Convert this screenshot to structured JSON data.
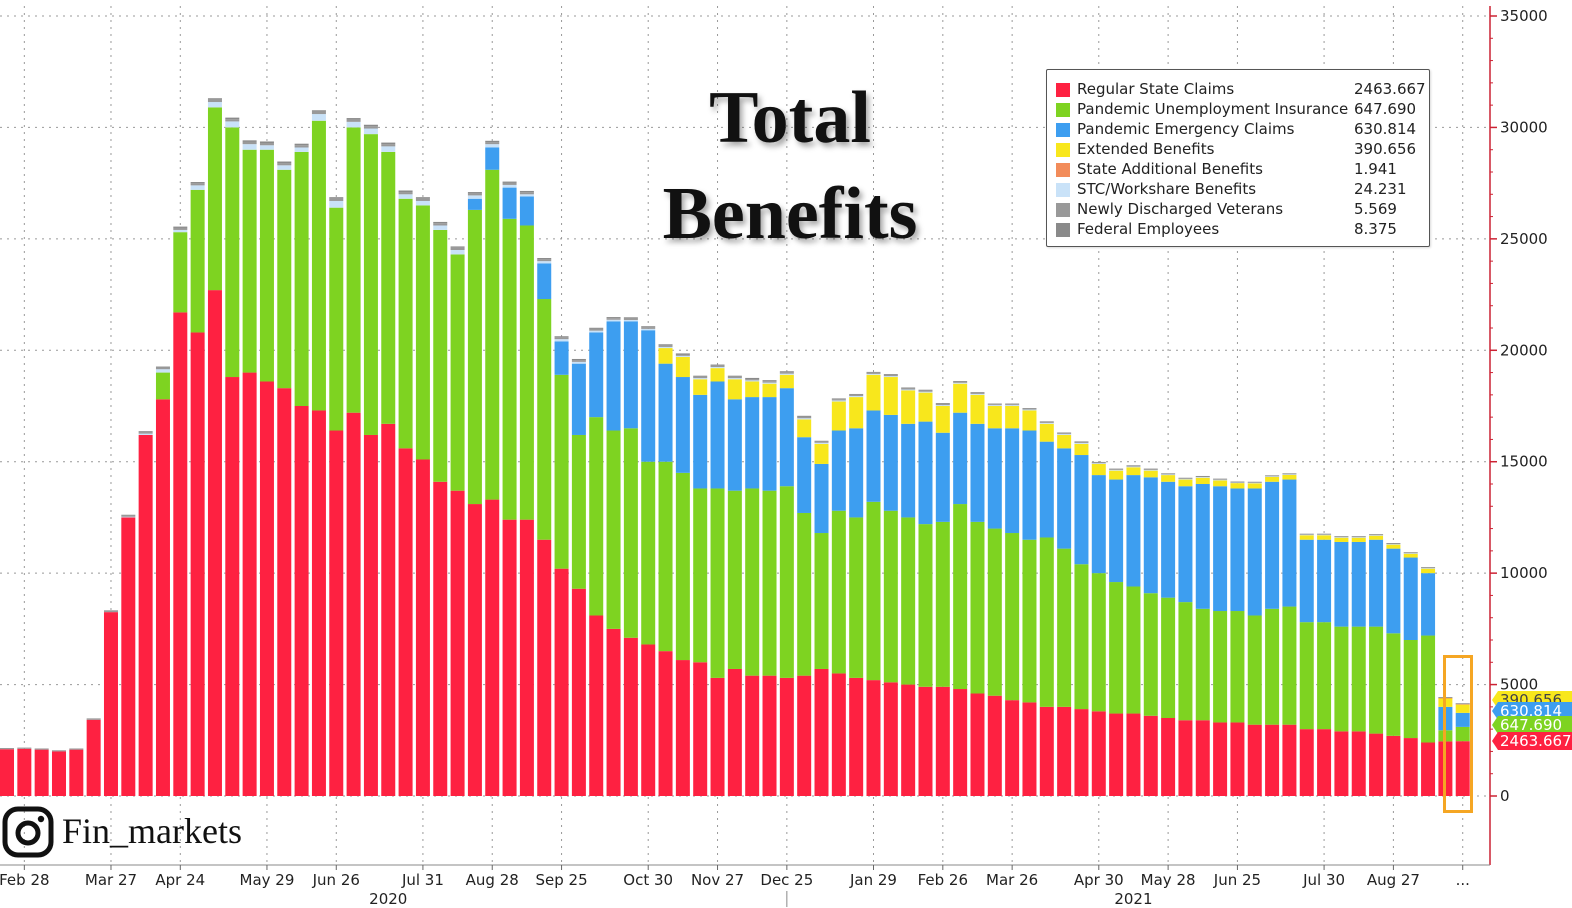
{
  "title": {
    "line1": "Total",
    "line2": "Benefits"
  },
  "watermark": {
    "handle": "Fin_markets",
    "icon": "instagram-icon"
  },
  "chart_data": {
    "type": "bar",
    "stacked": true,
    "ylim": [
      0,
      35000
    ],
    "y_ticks": [
      0,
      5000,
      10000,
      15000,
      20000,
      25000,
      30000,
      35000
    ],
    "x_tick_labels": [
      "Feb 28",
      "Mar 27",
      "Apr 24",
      "May 29",
      "Jun 26",
      "Jul 31",
      "Aug 28",
      "Sep 25",
      "Oct 30",
      "Nov 27",
      "Dec 25",
      "Jan 29",
      "Feb 26",
      "Mar 26",
      "Apr 30",
      "May 28",
      "Jun 25",
      "Jul 30",
      "Aug 27",
      "..."
    ],
    "x_tick_index": [
      1,
      6,
      10,
      15,
      19,
      24,
      28,
      32,
      37,
      41,
      45,
      50,
      54,
      58,
      63,
      67,
      71,
      76,
      80,
      84
    ],
    "year_labels": [
      "2020",
      "2021"
    ],
    "year_label_index": [
      22,
      65
    ],
    "year_divider_index": 45,
    "grid": true,
    "legend_position": "top-right",
    "series": [
      {
        "name": "Regular State Claims",
        "latest": "2463.667",
        "color": "#fe2141",
        "values": [
          2100,
          2120,
          2080,
          2000,
          2080,
          3420,
          8250,
          12500,
          16200,
          17800,
          21700,
          20800,
          22700,
          18800,
          19000,
          18600,
          18300,
          17500,
          17300,
          16400,
          17200,
          16200,
          16700,
          15600,
          15100,
          14100,
          13700,
          13100,
          13300,
          12400,
          12400,
          11500,
          10200,
          9300,
          8100,
          7500,
          7100,
          6800,
          6500,
          6100,
          6000,
          5300,
          5700,
          5400,
          5400,
          5300,
          5400,
          5700,
          5500,
          5300,
          5200,
          5100,
          5000,
          4900,
          4900,
          4800,
          4600,
          4500,
          4300,
          4200,
          4000,
          4000,
          3900,
          3800,
          3700,
          3700,
          3600,
          3500,
          3400,
          3400,
          3300,
          3300,
          3200,
          3200,
          3200,
          3000,
          3000,
          2900,
          2900,
          2800,
          2700,
          2600,
          2400,
          2450,
          2460
        ]
      },
      {
        "name": "Pandemic Unemployment Insurance",
        "latest": "647.690",
        "color": "#7ed321",
        "values": [
          0,
          0,
          0,
          0,
          0,
          0,
          0,
          0,
          0,
          1200,
          3600,
          6400,
          8200,
          11200,
          10000,
          10400,
          9800,
          11400,
          13000,
          10000,
          12800,
          13500,
          12200,
          11200,
          11400,
          11300,
          10600,
          13200,
          14800,
          13500,
          13200,
          10800,
          8700,
          6900,
          8900,
          8900,
          9400,
          8200,
          8500,
          8400,
          7800,
          8500,
          8000,
          8400,
          8300,
          8600,
          7300,
          6100,
          7300,
          7200,
          8000,
          7700,
          7500,
          7300,
          7400,
          8300,
          7700,
          7500,
          7500,
          7300,
          7600,
          7100,
          6500,
          6200,
          5900,
          5700,
          5500,
          5400,
          5300,
          5000,
          5000,
          5000,
          4900,
          5200,
          5300,
          4800,
          4800,
          4700,
          4700,
          4800,
          4600,
          4400,
          4800,
          500,
          640
        ]
      },
      {
        "name": "Pandemic Emergency Claims",
        "latest": "630.814",
        "color": "#3d9ef0",
        "values": [
          0,
          0,
          0,
          0,
          0,
          0,
          0,
          0,
          0,
          0,
          0,
          0,
          0,
          0,
          0,
          0,
          0,
          0,
          0,
          0,
          0,
          0,
          0,
          0,
          0,
          0,
          0,
          500,
          1000,
          1400,
          1300,
          1600,
          1500,
          3200,
          3800,
          4900,
          4800,
          5900,
          4400,
          4300,
          4200,
          4800,
          4100,
          4100,
          4200,
          4400,
          3400,
          3100,
          3600,
          4000,
          4100,
          4300,
          4200,
          4600,
          4000,
          4100,
          4400,
          4500,
          4700,
          4900,
          4300,
          4500,
          4900,
          4400,
          4600,
          5000,
          5200,
          5200,
          5200,
          5600,
          5600,
          5500,
          5700,
          5700,
          5700,
          3700,
          3700,
          3800,
          3800,
          3900,
          3800,
          3700,
          2800,
          1050,
          630
        ]
      },
      {
        "name": "Extended Benefits",
        "latest": "390.656",
        "color": "#f8e71c",
        "values": [
          0,
          0,
          0,
          0,
          0,
          0,
          0,
          0,
          0,
          0,
          0,
          0,
          0,
          0,
          0,
          0,
          0,
          0,
          0,
          0,
          0,
          0,
          0,
          0,
          0,
          0,
          0,
          0,
          0,
          0,
          0,
          0,
          0,
          0,
          0,
          0,
          0,
          0,
          700,
          900,
          700,
          600,
          900,
          700,
          600,
          600,
          800,
          900,
          1300,
          1400,
          1600,
          1700,
          1500,
          1300,
          1200,
          1300,
          1300,
          1000,
          1000,
          900,
          800,
          600,
          500,
          500,
          400,
          350,
          300,
          300,
          300,
          280,
          260,
          240,
          230,
          220,
          210,
          200,
          200,
          190,
          190,
          180,
          180,
          170,
          200,
          400,
          390
        ]
      },
      {
        "name": "State Additional Benefits",
        "latest": "1.941",
        "color": "#f28c5a",
        "values": [
          0,
          0,
          0,
          0,
          0,
          0,
          0,
          0,
          0,
          0,
          0,
          0,
          0,
          0,
          0,
          0,
          0,
          0,
          0,
          0,
          0,
          0,
          0,
          0,
          0,
          0,
          0,
          0,
          0,
          0,
          0,
          0,
          0,
          0,
          0,
          0,
          0,
          0,
          0,
          0,
          0,
          0,
          0,
          0,
          0,
          0,
          0,
          0,
          0,
          0,
          0,
          0,
          0,
          0,
          0,
          0,
          0,
          0,
          0,
          0,
          0,
          0,
          0,
          0,
          0,
          0,
          0,
          0,
          0,
          0,
          0,
          0,
          0,
          0,
          0,
          0,
          0,
          0,
          0,
          0,
          0,
          0,
          0,
          2,
          2
        ]
      },
      {
        "name": "STC/Workshare Benefits",
        "latest": "24.231",
        "color": "#c9e2f8",
        "values": [
          0,
          0,
          0,
          0,
          0,
          0,
          0,
          30,
          60,
          150,
          100,
          200,
          240,
          270,
          250,
          200,
          200,
          200,
          300,
          300,
          250,
          250,
          250,
          200,
          200,
          200,
          200,
          150,
          150,
          120,
          100,
          100,
          100,
          80,
          80,
          70,
          60,
          60,
          50,
          50,
          50,
          50,
          50,
          50,
          50,
          50,
          50,
          50,
          50,
          50,
          40,
          40,
          40,
          40,
          40,
          40,
          40,
          40,
          40,
          40,
          40,
          40,
          40,
          30,
          30,
          30,
          30,
          30,
          30,
          30,
          30,
          30,
          30,
          30,
          30,
          30,
          30,
          30,
          30,
          30,
          30,
          30,
          30,
          24,
          24
        ]
      },
      {
        "name": "Newly Discharged Veterans",
        "latest": "5.569",
        "color": "#999999",
        "values": [
          30,
          30,
          30,
          30,
          30,
          40,
          50,
          60,
          70,
          80,
          90,
          90,
          100,
          100,
          100,
          100,
          100,
          100,
          100,
          100,
          100,
          100,
          100,
          100,
          100,
          100,
          100,
          90,
          90,
          90,
          90,
          80,
          80,
          80,
          80,
          70,
          70,
          70,
          70,
          60,
          60,
          60,
          60,
          60,
          60,
          60,
          60,
          50,
          50,
          50,
          50,
          50,
          50,
          50,
          50,
          40,
          40,
          40,
          40,
          40,
          40,
          40,
          40,
          30,
          30,
          30,
          30,
          30,
          30,
          30,
          30,
          20,
          20,
          20,
          20,
          20,
          20,
          20,
          20,
          20,
          20,
          20,
          20,
          6,
          6
        ]
      },
      {
        "name": "Federal Employees",
        "latest": "8.375",
        "color": "#8a8a8a",
        "values": [
          20,
          20,
          20,
          20,
          20,
          20,
          30,
          30,
          40,
          40,
          60,
          60,
          70,
          70,
          70,
          70,
          70,
          70,
          70,
          70,
          70,
          70,
          70,
          70,
          70,
          60,
          60,
          60,
          60,
          60,
          60,
          60,
          50,
          50,
          50,
          50,
          50,
          50,
          50,
          50,
          50,
          50,
          50,
          50,
          50,
          50,
          50,
          40,
          40,
          40,
          40,
          40,
          40,
          40,
          40,
          40,
          40,
          30,
          30,
          30,
          30,
          30,
          30,
          30,
          30,
          30,
          30,
          20,
          20,
          20,
          20,
          20,
          20,
          20,
          20,
          20,
          20,
          20,
          20,
          20,
          20,
          20,
          20,
          8,
          8
        ]
      }
    ],
    "last_value_tags": [
      {
        "text": "390.656",
        "color": "#f8e71c",
        "text_color": "#444444"
      },
      {
        "text": "630.814",
        "color": "#3d9ef0",
        "text_color": "#ffffff"
      },
      {
        "text": "647.690",
        "color": "#7ed321",
        "text_color": "#ffffff"
      },
      {
        "text": "2463.667",
        "color": "#fe2141",
        "text_color": "#ffffff"
      }
    ]
  },
  "colors": {
    "highlight_box": "#f5a623",
    "axis": "#cc2233",
    "grid": "#999999"
  }
}
